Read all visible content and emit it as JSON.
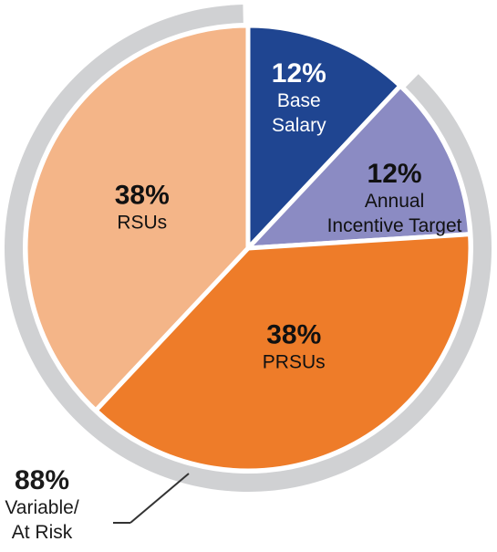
{
  "chart_data": {
    "type": "pie",
    "slices": [
      {
        "pct_label": "12%",
        "lines": [
          "Base",
          "Salary"
        ],
        "value": 12,
        "color": "#1f4591",
        "text_color": "#ffffff"
      },
      {
        "pct_label": "12%",
        "lines": [
          "Annual",
          "Incentive Target"
        ],
        "value": 12,
        "color": "#8b8bc3",
        "text_color": "#111111"
      },
      {
        "pct_label": "38%",
        "lines": [
          "PRSUs"
        ],
        "value": 38,
        "color": "#ee7c29",
        "text_color": "#111111"
      },
      {
        "pct_label": "38%",
        "lines": [
          "RSUs"
        ],
        "value": 38,
        "color": "#f4b588",
        "text_color": "#111111"
      }
    ],
    "outer_ring": {
      "pct_label": "88%",
      "lines": [
        "Variable/",
        "At Risk"
      ],
      "value": 88,
      "color": "#d0d1d3"
    }
  }
}
